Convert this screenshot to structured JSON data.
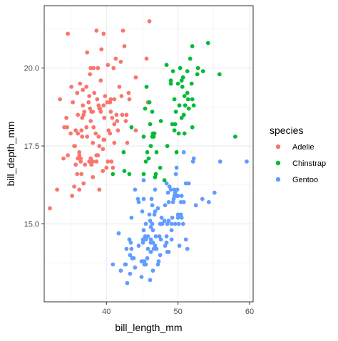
{
  "chart_data": {
    "type": "scatter",
    "title": "",
    "xlabel": "bill_length_mm",
    "ylabel": "bill_depth_mm",
    "xlim": [
      31.3,
      60.5
    ],
    "ylim": [
      12.5,
      22.0
    ],
    "x_ticks": [
      40,
      50,
      60
    ],
    "x_tick_labels": [
      "40",
      "50",
      "60"
    ],
    "y_ticks": [
      15.0,
      17.5,
      20.0
    ],
    "y_tick_labels": [
      "15.0",
      "17.5",
      "20.0"
    ],
    "grid": true,
    "legend": {
      "title": "species",
      "position": "right"
    },
    "series": [
      {
        "name": "Adelie",
        "color": "#F8766D",
        "points": [
          [
            32.1,
            15.5
          ],
          [
            33.1,
            16.1
          ],
          [
            33.5,
            19.0
          ],
          [
            34.0,
            17.1
          ],
          [
            34.4,
            18.4
          ],
          [
            34.5,
            18.1
          ],
          [
            34.6,
            21.1
          ],
          [
            34.6,
            17.2
          ],
          [
            35.0,
            17.9
          ],
          [
            35.1,
            19.4
          ],
          [
            35.2,
            15.9
          ],
          [
            35.3,
            18.9
          ],
          [
            35.5,
            17.5
          ],
          [
            35.5,
            16.2
          ],
          [
            35.6,
            17.5
          ],
          [
            35.7,
            16.9
          ],
          [
            35.7,
            18.0
          ],
          [
            35.9,
            16.6
          ],
          [
            35.9,
            19.2
          ],
          [
            36.0,
            18.5
          ],
          [
            36.0,
            17.9
          ],
          [
            36.0,
            17.1
          ],
          [
            36.2,
            17.2
          ],
          [
            36.2,
            16.1
          ],
          [
            36.2,
            17.3
          ],
          [
            36.3,
            19.5
          ],
          [
            36.4,
            17.0
          ],
          [
            36.4,
            17.1
          ],
          [
            36.5,
            18.0
          ],
          [
            36.5,
            16.6
          ],
          [
            36.6,
            17.8
          ],
          [
            36.6,
            18.4
          ],
          [
            36.7,
            19.3
          ],
          [
            36.7,
            18.8
          ],
          [
            36.8,
            18.5
          ],
          [
            36.9,
            18.6
          ],
          [
            37.0,
            16.9
          ],
          [
            37.2,
            18.1
          ],
          [
            37.2,
            19.4
          ],
          [
            37.3,
            17.8
          ],
          [
            37.3,
            20.5
          ],
          [
            37.5,
            18.9
          ],
          [
            37.6,
            19.1
          ],
          [
            37.6,
            17.0
          ],
          [
            37.7,
            18.7
          ],
          [
            37.7,
            19.8
          ],
          [
            37.8,
            18.3
          ],
          [
            37.8,
            17.1
          ],
          [
            37.8,
            20.0
          ],
          [
            37.9,
            18.6
          ],
          [
            38.1,
            18.6
          ],
          [
            38.1,
            17.6
          ],
          [
            38.1,
            16.5
          ],
          [
            38.1,
            17.0
          ],
          [
            38.2,
            18.1
          ],
          [
            38.2,
            20.0
          ],
          [
            38.3,
            19.2
          ],
          [
            38.5,
            17.9
          ],
          [
            38.6,
            21.2
          ],
          [
            38.6,
            17.2
          ],
          [
            38.6,
            17.0
          ],
          [
            38.7,
            19.0
          ],
          [
            38.8,
            17.2
          ],
          [
            38.8,
            20.0
          ],
          [
            38.9,
            17.8
          ],
          [
            38.9,
            18.8
          ],
          [
            39.0,
            17.5
          ],
          [
            39.0,
            18.7
          ],
          [
            39.1,
            18.7
          ],
          [
            39.2,
            19.6
          ],
          [
            39.2,
            18.6
          ],
          [
            39.3,
            20.6
          ],
          [
            39.5,
            17.4
          ],
          [
            39.5,
            16.7
          ],
          [
            39.6,
            17.7
          ],
          [
            39.6,
            18.8
          ],
          [
            39.6,
            21.1
          ],
          [
            39.7,
            18.4
          ],
          [
            39.7,
            17.7
          ],
          [
            39.8,
            19.1
          ],
          [
            40.1,
            18.9
          ],
          [
            40.2,
            17.0
          ],
          [
            40.2,
            20.1
          ],
          [
            40.3,
            18.0
          ],
          [
            40.5,
            17.9
          ],
          [
            40.5,
            18.9
          ],
          [
            40.6,
            18.6
          ],
          [
            40.6,
            19.0
          ],
          [
            40.7,
            17.0
          ],
          [
            40.8,
            18.4
          ],
          [
            40.9,
            16.8
          ],
          [
            41.0,
            20.0
          ],
          [
            41.1,
            17.6
          ],
          [
            41.1,
            18.2
          ],
          [
            41.1,
            19.0
          ],
          [
            41.3,
            20.3
          ],
          [
            41.4,
            18.5
          ],
          [
            41.5,
            18.3
          ],
          [
            41.6,
            18.0
          ],
          [
            41.8,
            19.4
          ],
          [
            42.0,
            20.2
          ],
          [
            42.1,
            19.1
          ],
          [
            42.2,
            18.5
          ],
          [
            42.3,
            21.2
          ],
          [
            42.5,
            20.7
          ],
          [
            42.7,
            18.3
          ],
          [
            42.8,
            18.5
          ],
          [
            42.9,
            17.6
          ],
          [
            43.1,
            19.2
          ],
          [
            43.2,
            19.0
          ],
          [
            44.1,
            19.7
          ],
          [
            44.1,
            18.0
          ],
          [
            45.6,
            20.3
          ],
          [
            45.8,
            18.9
          ],
          [
            46.0,
            21.5
          ],
          [
            39.0,
            16.1
          ],
          [
            37.9,
            16.9
          ],
          [
            36.8,
            16.3
          ],
          [
            34.1,
            18.1
          ],
          [
            40.0,
            16.8
          ]
        ]
      },
      {
        "name": "Chinstrap",
        "color": "#00BA38",
        "points": [
          [
            40.9,
            16.6
          ],
          [
            42.4,
            17.3
          ],
          [
            42.5,
            16.7
          ],
          [
            43.2,
            16.6
          ],
          [
            43.5,
            18.1
          ],
          [
            45.2,
            16.6
          ],
          [
            45.2,
            17.8
          ],
          [
            45.4,
            18.7
          ],
          [
            45.5,
            17.0
          ],
          [
            45.6,
            19.4
          ],
          [
            45.7,
            17.3
          ],
          [
            45.9,
            17.1
          ],
          [
            46.0,
            18.9
          ],
          [
            46.1,
            18.2
          ],
          [
            46.2,
            17.5
          ],
          [
            46.4,
            18.6
          ],
          [
            46.4,
            17.8
          ],
          [
            46.5,
            17.9
          ],
          [
            46.6,
            17.8
          ],
          [
            46.7,
            17.9
          ],
          [
            46.8,
            16.5
          ],
          [
            46.9,
            16.6
          ],
          [
            47.0,
            17.3
          ],
          [
            47.5,
            16.8
          ],
          [
            47.6,
            18.3
          ],
          [
            48.1,
            16.4
          ],
          [
            48.5,
            17.5
          ],
          [
            49.0,
            19.5
          ],
          [
            49.2,
            18.2
          ],
          [
            49.3,
            19.9
          ],
          [
            49.5,
            19.0
          ],
          [
            49.6,
            18.2
          ],
          [
            49.7,
            18.6
          ],
          [
            49.8,
            17.3
          ],
          [
            50.0,
            19.5
          ],
          [
            50.1,
            17.9
          ],
          [
            50.2,
            18.8
          ],
          [
            50.3,
            20.0
          ],
          [
            50.5,
            18.4
          ],
          [
            50.5,
            19.6
          ],
          [
            50.6,
            19.4
          ],
          [
            50.7,
            19.7
          ],
          [
            50.8,
            18.5
          ],
          [
            50.9,
            19.1
          ],
          [
            50.9,
            17.9
          ],
          [
            51.0,
            18.8
          ],
          [
            51.3,
            19.2
          ],
          [
            51.3,
            19.9
          ],
          [
            51.4,
            19.0
          ],
          [
            51.5,
            18.7
          ],
          [
            51.7,
            20.3
          ],
          [
            52.0,
            18.1
          ],
          [
            52.0,
            19.0
          ],
          [
            52.0,
            20.7
          ],
          [
            52.2,
            18.8
          ],
          [
            52.7,
            19.8
          ],
          [
            52.8,
            20.0
          ],
          [
            53.5,
            19.9
          ],
          [
            54.2,
            20.8
          ],
          [
            55.8,
            19.8
          ],
          [
            58.0,
            17.8
          ],
          [
            49.0,
            19.6
          ],
          [
            48.4,
            20.1
          ],
          [
            49.5,
            18.0
          ],
          [
            51.9,
            19.5
          ]
        ]
      },
      {
        "name": "Gentoo",
        "color": "#619CFF",
        "points": [
          [
            40.9,
            13.7
          ],
          [
            41.7,
            14.7
          ],
          [
            42.0,
            13.5
          ],
          [
            42.6,
            13.7
          ],
          [
            42.7,
            13.7
          ],
          [
            42.8,
            14.2
          ],
          [
            42.9,
            13.1
          ],
          [
            43.2,
            14.5
          ],
          [
            43.3,
            13.4
          ],
          [
            43.3,
            14.0
          ],
          [
            43.4,
            14.4
          ],
          [
            43.5,
            14.2
          ],
          [
            43.5,
            15.2
          ],
          [
            43.6,
            13.9
          ],
          [
            43.8,
            13.9
          ],
          [
            44.0,
            13.6
          ],
          [
            44.4,
            15.8
          ],
          [
            44.5,
            14.3
          ],
          [
            44.5,
            15.7
          ],
          [
            44.9,
            13.8
          ],
          [
            44.9,
            13.3
          ],
          [
            45.0,
            15.4
          ],
          [
            45.1,
            14.5
          ],
          [
            45.1,
            14.4
          ],
          [
            45.2,
            13.8
          ],
          [
            45.2,
            14.8
          ],
          [
            45.2,
            15.8
          ],
          [
            45.2,
            16.4
          ],
          [
            45.3,
            13.7
          ],
          [
            45.3,
            13.8
          ],
          [
            45.4,
            14.6
          ],
          [
            45.5,
            13.7
          ],
          [
            45.5,
            14.5
          ],
          [
            45.5,
            15.0
          ],
          [
            45.7,
            13.9
          ],
          [
            45.8,
            14.2
          ],
          [
            45.8,
            14.6
          ],
          [
            46.1,
            13.2
          ],
          [
            46.1,
            15.1
          ],
          [
            46.2,
            14.1
          ],
          [
            46.2,
            14.4
          ],
          [
            46.2,
            14.5
          ],
          [
            46.2,
            14.9
          ],
          [
            46.3,
            15.8
          ],
          [
            46.4,
            15.0
          ],
          [
            46.4,
            15.6
          ],
          [
            46.5,
            13.5
          ],
          [
            46.5,
            14.4
          ],
          [
            46.5,
            14.8
          ],
          [
            46.6,
            14.2
          ],
          [
            46.7,
            15.3
          ],
          [
            46.8,
            14.3
          ],
          [
            46.8,
            15.4
          ],
          [
            46.8,
            16.1
          ],
          [
            46.9,
            14.6
          ],
          [
            47.0,
            14.2
          ],
          [
            47.2,
            13.7
          ],
          [
            47.2,
            15.5
          ],
          [
            47.3,
            13.8
          ],
          [
            47.4,
            14.6
          ],
          [
            47.5,
            14.0
          ],
          [
            47.5,
            15.0
          ],
          [
            47.6,
            14.5
          ],
          [
            47.7,
            15.0
          ],
          [
            47.8,
            15.0
          ],
          [
            48.1,
            15.1
          ],
          [
            48.2,
            14.3
          ],
          [
            48.2,
            15.6
          ],
          [
            48.4,
            14.4
          ],
          [
            48.4,
            14.6
          ],
          [
            48.4,
            16.3
          ],
          [
            48.5,
            14.1
          ],
          [
            48.5,
            15.0
          ],
          [
            48.6,
            16.0
          ],
          [
            48.7,
            14.1
          ],
          [
            48.7,
            15.1
          ],
          [
            48.7,
            15.7
          ],
          [
            48.8,
            16.2
          ],
          [
            49.0,
            16.1
          ],
          [
            49.1,
            14.5
          ],
          [
            49.1,
            14.8
          ],
          [
            49.1,
            15.0
          ],
          [
            49.2,
            15.2
          ],
          [
            49.3,
            15.7
          ],
          [
            49.4,
            15.8
          ],
          [
            49.5,
            15.9
          ],
          [
            49.5,
            16.1
          ],
          [
            49.6,
            15.0
          ],
          [
            49.6,
            16.0
          ],
          [
            49.8,
            15.9
          ],
          [
            49.8,
            16.8
          ],
          [
            49.9,
            16.1
          ],
          [
            50.0,
            15.2
          ],
          [
            50.0,
            15.3
          ],
          [
            50.0,
            15.9
          ],
          [
            50.1,
            15.0
          ],
          [
            50.2,
            14.3
          ],
          [
            50.4,
            15.3
          ],
          [
            50.4,
            15.7
          ],
          [
            50.5,
            15.2
          ],
          [
            50.5,
            15.9
          ],
          [
            50.7,
            15.0
          ],
          [
            50.8,
            15.7
          ],
          [
            50.8,
            17.3
          ],
          [
            51.1,
            14.5
          ],
          [
            51.1,
            16.3
          ],
          [
            51.3,
            14.2
          ],
          [
            51.5,
            16.3
          ],
          [
            52.1,
            17.0
          ],
          [
            52.2,
            17.1
          ],
          [
            52.5,
            15.6
          ],
          [
            53.4,
            15.8
          ],
          [
            54.3,
            15.7
          ],
          [
            55.1,
            16.0
          ],
          [
            55.9,
            17.0
          ],
          [
            59.6,
            17.0
          ],
          [
            49.7,
            16.6
          ],
          [
            47.7,
            15.2
          ],
          [
            46.0,
            15.3
          ],
          [
            44.0,
            16.1
          ]
        ]
      }
    ]
  }
}
